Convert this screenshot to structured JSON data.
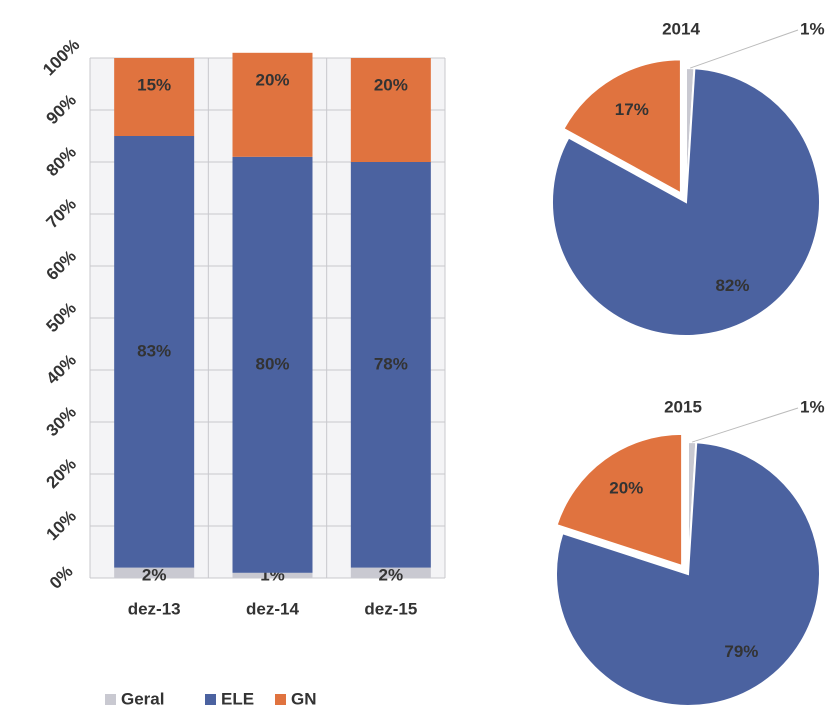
{
  "chart_data": [
    {
      "type": "bar",
      "stacked": true,
      "categories": [
        "dez-13",
        "dez-14",
        "dez-15"
      ],
      "series": [
        {
          "name": "Geral",
          "color": "#c9c9d1",
          "values": [
            2,
            1,
            2
          ],
          "value_labels": [
            "2%",
            "1%",
            "2%"
          ]
        },
        {
          "name": "ELE",
          "color": "#4b62a0",
          "values": [
            83,
            80,
            78
          ],
          "value_labels": [
            "83%",
            "80%",
            "78%"
          ]
        },
        {
          "name": "GN",
          "color": "#e0733f",
          "values": [
            15,
            20,
            20
          ],
          "value_labels": [
            "15%",
            "20%",
            "20%"
          ]
        }
      ],
      "ylim": [
        0,
        100
      ],
      "yticks": [
        {
          "value": 0,
          "label": "0%"
        },
        {
          "value": 10,
          "label": "10%"
        },
        {
          "value": 20,
          "label": "20%"
        },
        {
          "value": 30,
          "label": "30%"
        },
        {
          "value": 40,
          "label": "40%"
        },
        {
          "value": 50,
          "label": "50%"
        },
        {
          "value": 60,
          "label": "60%"
        },
        {
          "value": 70,
          "label": "70%"
        },
        {
          "value": 80,
          "label": "80%"
        },
        {
          "value": 90,
          "label": "90%"
        },
        {
          "value": 100,
          "label": "100%"
        }
      ],
      "grid": true,
      "legend": "bottom"
    },
    {
      "type": "pie",
      "title": "2014",
      "categories": [
        "Geral",
        "ELE",
        "GN"
      ],
      "colors": [
        "#c9c9d1",
        "#4b62a0",
        "#e0733f"
      ],
      "values": [
        1,
        82,
        17
      ],
      "value_labels": [
        "1%",
        "82%",
        "17%"
      ]
    },
    {
      "type": "pie",
      "title": "2015",
      "categories": [
        "Geral",
        "ELE",
        "GN"
      ],
      "colors": [
        "#c9c9d1",
        "#4b62a0",
        "#e0733f"
      ],
      "values": [
        1,
        79,
        20
      ],
      "value_labels": [
        "1%",
        "79%",
        "20%"
      ]
    }
  ]
}
